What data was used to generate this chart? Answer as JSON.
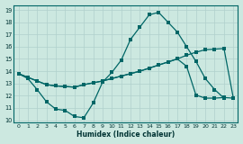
{
  "bg_color": "#cce8e0",
  "grid_color": "#b0d0cc",
  "line_color": "#006666",
  "xlabel": "Humidex (Indice chaleur)",
  "xlim": [
    -0.5,
    23.5
  ],
  "ylim": [
    9.8,
    19.4
  ],
  "xticks": [
    0,
    1,
    2,
    3,
    4,
    5,
    6,
    7,
    8,
    9,
    10,
    11,
    12,
    13,
    14,
    15,
    16,
    17,
    18,
    19,
    20,
    21,
    22,
    23
  ],
  "yticks": [
    10,
    11,
    12,
    13,
    14,
    15,
    16,
    17,
    18,
    19
  ],
  "line1_x": [
    0,
    1,
    2,
    3,
    4,
    5,
    6,
    7,
    8,
    9,
    10,
    11,
    12,
    13,
    14,
    15,
    16,
    17,
    18,
    19,
    20,
    21,
    22
  ],
  "line1_y": [
    13.8,
    13.4,
    12.5,
    11.5,
    10.9,
    10.8,
    10.3,
    10.2,
    11.4,
    13.1,
    13.9,
    14.9,
    16.6,
    17.6,
    18.6,
    18.8,
    18.0,
    17.2,
    16.0,
    14.8,
    13.4,
    12.5,
    11.8
  ],
  "line2_x": [
    0,
    1,
    2,
    3,
    4,
    5,
    6,
    7,
    8,
    9,
    10,
    11,
    12,
    13,
    14,
    15,
    16,
    17,
    18,
    19,
    20,
    21,
    22,
    23
  ],
  "line2_y": [
    13.8,
    13.5,
    13.2,
    12.9,
    12.8,
    12.75,
    12.7,
    12.9,
    13.05,
    13.2,
    13.4,
    13.6,
    13.8,
    14.0,
    14.25,
    14.5,
    14.75,
    15.0,
    15.3,
    15.55,
    15.75,
    15.8,
    15.85,
    11.8
  ],
  "line3_x": [
    0,
    1,
    2,
    3,
    4,
    5,
    6,
    7,
    8,
    9,
    10,
    11,
    12,
    13,
    14,
    15,
    16,
    17,
    18,
    19,
    20,
    21,
    22,
    23
  ],
  "line3_y": [
    13.8,
    13.5,
    13.2,
    12.9,
    12.8,
    12.75,
    12.7,
    12.9,
    13.05,
    13.2,
    13.4,
    13.6,
    13.8,
    14.0,
    14.25,
    14.5,
    14.75,
    15.0,
    14.4,
    12.05,
    11.8,
    11.8,
    11.85,
    11.8
  ]
}
